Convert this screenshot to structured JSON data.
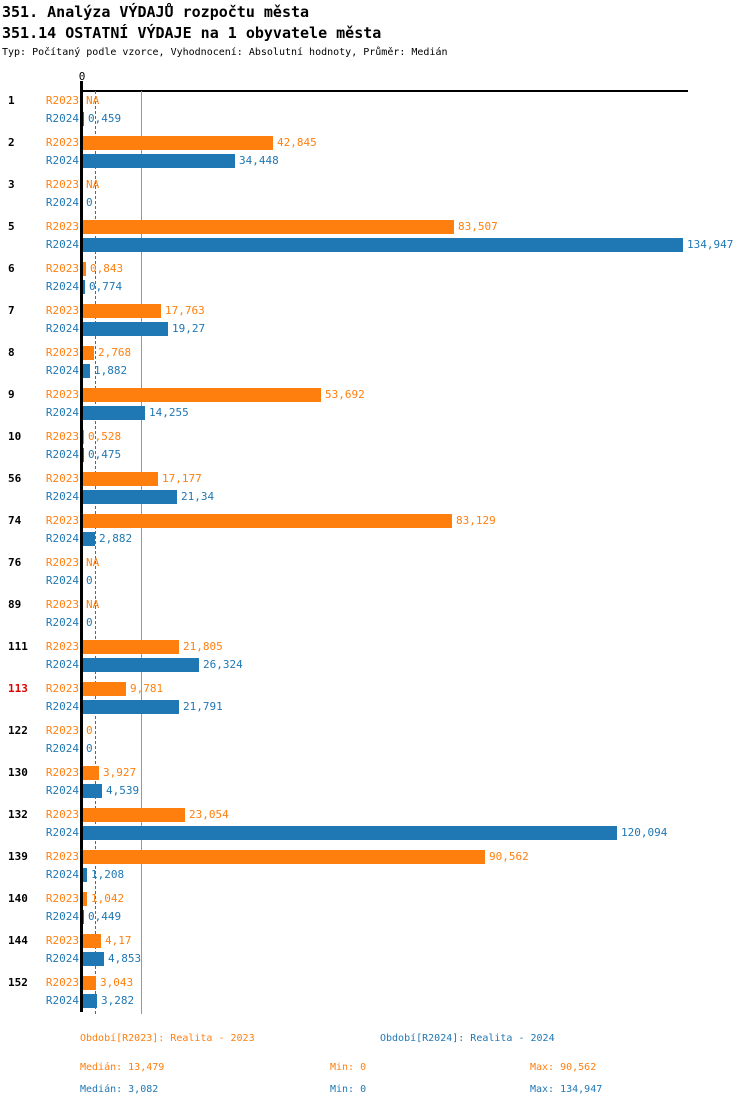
{
  "header": {
    "title": "351. Analýza VÝDAJŮ rozpočtu města",
    "subtitle": "351.14 OSTATNÍ VÝDAJE na 1 obyvatele města",
    "meta": "Typ: Počítaný podle vzorce, Vyhodnocení: Absolutní hodnoty, Průměr: Medián"
  },
  "chart_data": {
    "type": "bar",
    "orientation": "horizontal",
    "zero_label": "0",
    "xmax": 134.947,
    "grid": false,
    "legend_position": "bottom",
    "colors": {
      "r2023": "#ff7f0e",
      "r2024": "#1f77b4",
      "highlight_category": "#e00000",
      "axis": "#000000"
    },
    "series": [
      {
        "name": "R2023",
        "color": "#ff7f0e",
        "median": 13.479,
        "median_line_style": "solid",
        "period_label": "Období[R2023]: Realita - 2023",
        "median_label": "Medián: 13,479",
        "min_label": "Min: 0",
        "max_label": "Max: 90,562"
      },
      {
        "name": "R2024",
        "color": "#1f77b4",
        "median": 3.082,
        "median_line_style": "dashed",
        "period_label": "Období[R2024]: Realita - 2024",
        "median_label": "Medián: 3,082",
        "min_label": "Min: 0",
        "max_label": "Max: 134,947"
      }
    ],
    "categories": [
      {
        "label": "1",
        "highlight": false,
        "values": [
          {
            "v": null,
            "text": "NA"
          },
          {
            "v": 0.459,
            "text": "0,459"
          }
        ]
      },
      {
        "label": "2",
        "highlight": false,
        "values": [
          {
            "v": 42.845,
            "text": "42,845"
          },
          {
            "v": 34.448,
            "text": "34,448"
          }
        ]
      },
      {
        "label": "3",
        "highlight": false,
        "values": [
          {
            "v": null,
            "text": "NA"
          },
          {
            "v": 0,
            "text": "0"
          }
        ]
      },
      {
        "label": "5",
        "highlight": false,
        "values": [
          {
            "v": 83.507,
            "text": "83,507"
          },
          {
            "v": 134.947,
            "text": "134,947"
          }
        ]
      },
      {
        "label": "6",
        "highlight": false,
        "values": [
          {
            "v": 0.843,
            "text": "0,843"
          },
          {
            "v": 0.774,
            "text": "0,774"
          }
        ]
      },
      {
        "label": "7",
        "highlight": false,
        "values": [
          {
            "v": 17.763,
            "text": "17,763"
          },
          {
            "v": 19.27,
            "text": "19,27"
          }
        ]
      },
      {
        "label": "8",
        "highlight": false,
        "values": [
          {
            "v": 2.768,
            "text": "2,768"
          },
          {
            "v": 1.882,
            "text": "1,882"
          }
        ]
      },
      {
        "label": "9",
        "highlight": false,
        "values": [
          {
            "v": 53.692,
            "text": "53,692"
          },
          {
            "v": 14.255,
            "text": "14,255"
          }
        ]
      },
      {
        "label": "10",
        "highlight": false,
        "values": [
          {
            "v": 0.528,
            "text": "0,528"
          },
          {
            "v": 0.475,
            "text": "0,475"
          }
        ]
      },
      {
        "label": "56",
        "highlight": false,
        "values": [
          {
            "v": 17.177,
            "text": "17,177"
          },
          {
            "v": 21.34,
            "text": "21,34"
          }
        ]
      },
      {
        "label": "74",
        "highlight": false,
        "values": [
          {
            "v": 83.129,
            "text": "83,129"
          },
          {
            "v": 2.882,
            "text": "2,882"
          }
        ]
      },
      {
        "label": "76",
        "highlight": false,
        "values": [
          {
            "v": null,
            "text": "NA"
          },
          {
            "v": 0,
            "text": "0"
          }
        ]
      },
      {
        "label": "89",
        "highlight": false,
        "values": [
          {
            "v": null,
            "text": "NA"
          },
          {
            "v": 0,
            "text": "0"
          }
        ]
      },
      {
        "label": "111",
        "highlight": false,
        "values": [
          {
            "v": 21.805,
            "text": "21,805"
          },
          {
            "v": 26.324,
            "text": "26,324"
          }
        ]
      },
      {
        "label": "113",
        "highlight": true,
        "values": [
          {
            "v": 9.781,
            "text": "9,781"
          },
          {
            "v": 21.791,
            "text": "21,791"
          }
        ]
      },
      {
        "label": "122",
        "highlight": false,
        "values": [
          {
            "v": 0,
            "text": "0"
          },
          {
            "v": 0,
            "text": "0"
          }
        ]
      },
      {
        "label": "130",
        "highlight": false,
        "values": [
          {
            "v": 3.927,
            "text": "3,927"
          },
          {
            "v": 4.539,
            "text": "4,539"
          }
        ]
      },
      {
        "label": "132",
        "highlight": false,
        "values": [
          {
            "v": 23.054,
            "text": "23,054"
          },
          {
            "v": 120.094,
            "text": "120,094"
          }
        ]
      },
      {
        "label": "139",
        "highlight": false,
        "values": [
          {
            "v": 90.562,
            "text": "90,562"
          },
          {
            "v": 1.208,
            "text": "1,208"
          }
        ]
      },
      {
        "label": "140",
        "highlight": false,
        "values": [
          {
            "v": 1.042,
            "text": "1,042"
          },
          {
            "v": 0.449,
            "text": "0,449"
          }
        ]
      },
      {
        "label": "144",
        "highlight": false,
        "values": [
          {
            "v": 4.17,
            "text": "4,17"
          },
          {
            "v": 4.853,
            "text": "4,853"
          }
        ]
      },
      {
        "label": "152",
        "highlight": false,
        "values": [
          {
            "v": 3.043,
            "text": "3,043"
          },
          {
            "v": 3.282,
            "text": "3,282"
          }
        ]
      }
    ]
  }
}
